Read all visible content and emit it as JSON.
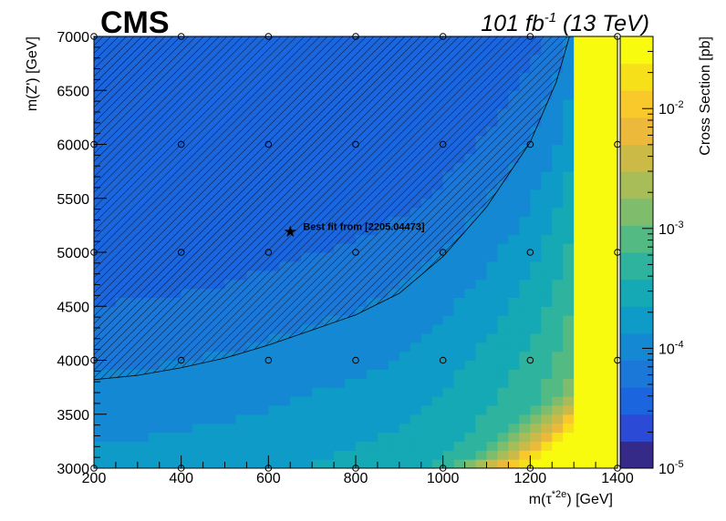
{
  "header": {
    "experiment": "CMS",
    "lumi_prefix": "101 fb",
    "lumi_exp": "-1",
    "lumi_suffix": " (13 TeV)"
  },
  "chart_data": {
    "type": "heatmap",
    "xlabel_main": "m(τ",
    "xlabel_sup": "*2e",
    "xlabel_tail": ") [GeV]",
    "ylabel": "m(Z') [GeV]",
    "zlabel": "Cross Section [pb]",
    "xlim": [
      200,
      1400
    ],
    "ylim": [
      3000,
      7000
    ],
    "x_ticks": [
      "200",
      "400",
      "600",
      "800",
      "1000",
      "1200",
      "1400"
    ],
    "y_ticks": [
      "3000",
      "3500",
      "4000",
      "4500",
      "5000",
      "5500",
      "6000",
      "6500",
      "7000"
    ],
    "z_scale": "log",
    "z_range": [
      1e-05,
      0.04
    ],
    "z_ticks": [
      {
        "value": 0.01,
        "base": "10",
        "exp": "-2"
      },
      {
        "value": 0.001,
        "base": "10",
        "exp": "-3"
      },
      {
        "value": 0.0001,
        "base": "10",
        "exp": "-4"
      },
      {
        "value": 1e-05,
        "base": "10",
        "exp": "-5"
      }
    ],
    "colormap": [
      "#352a87",
      "#2b4bd6",
      "#1b66de",
      "#1c78d8",
      "#1488d2",
      "#0e9bc7",
      "#15a9b5",
      "#2db39e",
      "#54ba83",
      "#7fbc6c",
      "#a8bd57",
      "#cbbb46",
      "#edb93a",
      "#f9c92b",
      "#f6e01a",
      "#f9fb0e"
    ],
    "grid_points_x": [
      200,
      400,
      600,
      800,
      1000,
      1200,
      1400
    ],
    "grid_points_y": [
      3000,
      4000,
      5000,
      6000,
      7000
    ],
    "excluded_contour": [
      [
        200,
        3820
      ],
      [
        300,
        3860
      ],
      [
        400,
        3930
      ],
      [
        500,
        4020
      ],
      [
        600,
        4140
      ],
      [
        700,
        4280
      ],
      [
        800,
        4420
      ],
      [
        900,
        4620
      ],
      [
        1000,
        4960
      ],
      [
        1100,
        5420
      ],
      [
        1200,
        6020
      ],
      [
        1260,
        6580
      ],
      [
        1290,
        7000
      ]
    ],
    "best_fit": {
      "x": 650,
      "y": 5190,
      "label": "Best fit from [2205.04473]"
    },
    "region_fill": "#1a6fd6"
  }
}
